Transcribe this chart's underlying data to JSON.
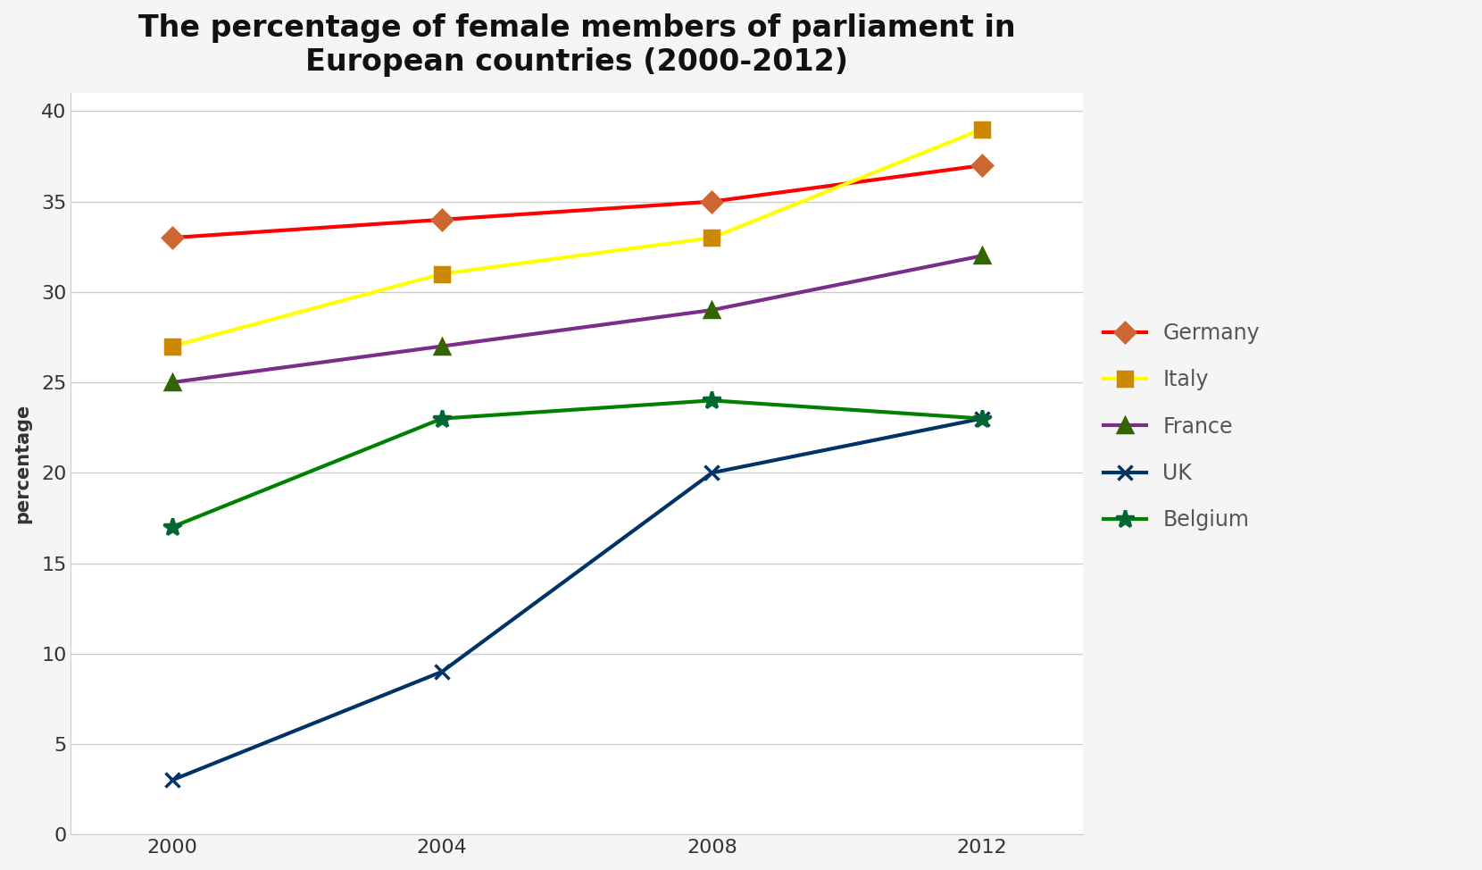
{
  "title": "The percentage of female members of parliament in\nEuropean countries (2000-2012)",
  "ylabel": "percentage",
  "years": [
    2000,
    2004,
    2008,
    2012
  ],
  "series": [
    {
      "name": "Germany",
      "values": [
        33,
        34,
        35,
        37
      ],
      "line_color": "#FF0000",
      "marker_color": "#CC6633",
      "marker": "D",
      "markersize": 11,
      "linewidth": 3.0
    },
    {
      "name": "Italy",
      "values": [
        27,
        31,
        33,
        39
      ],
      "line_color": "#FFFF00",
      "marker_color": "#CC8800",
      "marker": "s",
      "markersize": 12,
      "linewidth": 3.0
    },
    {
      "name": "France",
      "values": [
        25,
        27,
        29,
        32
      ],
      "line_color": "#7B2D8B",
      "marker_color": "#336600",
      "marker": "^",
      "markersize": 12,
      "linewidth": 3.0
    },
    {
      "name": "UK",
      "values": [
        3,
        9,
        20,
        23
      ],
      "line_color": "#003366",
      "marker_color": "#003366",
      "marker": "x",
      "markersize": 12,
      "linewidth": 3.0
    },
    {
      "name": "Belgium",
      "values": [
        17,
        23,
        24,
        23
      ],
      "line_color": "#008000",
      "marker_color": "#006633",
      "marker": "*",
      "markersize": 15,
      "linewidth": 3.0
    }
  ],
  "ylim": [
    0,
    41
  ],
  "yticks": [
    0,
    5,
    10,
    15,
    20,
    25,
    30,
    35,
    40
  ],
  "xlim": [
    1998.5,
    2013.5
  ],
  "xticks": [
    2000,
    2004,
    2008,
    2012
  ],
  "outer_bg": "#f5f5f5",
  "plot_bg": "#ffffff",
  "title_fontsize": 24,
  "axis_label_fontsize": 15,
  "tick_fontsize": 16,
  "legend_fontsize": 17,
  "legend_text_color": "#555555",
  "grid_color": "#cccccc",
  "spine_color": "#cccccc"
}
